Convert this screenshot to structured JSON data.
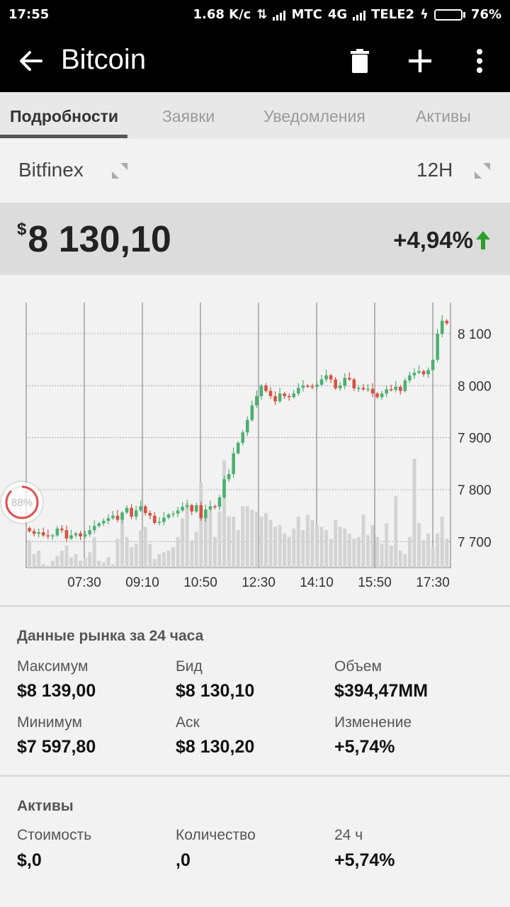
{
  "status_bar": {
    "time": "17:55",
    "net_speed": "1.68 K/c",
    "carrier1": "МТС",
    "net_type": "4G",
    "carrier2": "TELE2",
    "battery_pct": "76%",
    "battery_level": 0.76
  },
  "app_bar": {
    "title": "Bitcoin",
    "icons": [
      "back-arrow-icon",
      "trash-icon",
      "plus-icon",
      "more-vert-icon"
    ]
  },
  "tabs": [
    {
      "label": "Подробности",
      "active": true
    },
    {
      "label": "Заявки",
      "active": false
    },
    {
      "label": "Уведомления",
      "active": false
    },
    {
      "label": "Активы",
      "active": false
    }
  ],
  "exchange": {
    "name": "Bitfinex",
    "timeframe": "12H"
  },
  "price": {
    "currency_symbol": "$",
    "value": "8 130,10",
    "change": "+4,94%",
    "change_color": "#2e9e2e"
  },
  "chart_data": {
    "type": "candlestick",
    "x_ticks": [
      "07:30",
      "09:10",
      "10:50",
      "12:30",
      "14:10",
      "15:50",
      "17:30"
    ],
    "y_ticks": [
      {
        "value": 8100,
        "label": "8 100"
      },
      {
        "value": 8000,
        "label": "8 000"
      },
      {
        "value": 7900,
        "label": "7 900"
      },
      {
        "value": 7800,
        "label": "7 800"
      },
      {
        "value": 7700,
        "label": "7 700"
      }
    ],
    "ylim": [
      7650,
      8160
    ],
    "up_color": "#4caf72",
    "down_color": "#d9503f",
    "volume_color": "#d3d3d3",
    "closes": [
      7720,
      7715,
      7718,
      7712,
      7710,
      7712,
      7725,
      7722,
      7706,
      7712,
      7716,
      7710,
      7714,
      7722,
      7730,
      7735,
      7740,
      7745,
      7750,
      7742,
      7756,
      7765,
      7748,
      7760,
      7768,
      7755,
      7750,
      7736,
      7738,
      7746,
      7752,
      7754,
      7760,
      7767,
      7770,
      7758,
      7770,
      7745,
      7762,
      7768,
      7767,
      7785,
      7820,
      7830,
      7870,
      7890,
      7910,
      7934,
      7962,
      7980,
      8000,
      7990,
      7980,
      7970,
      7985,
      7980,
      7978,
      7985,
      7996,
      8000,
      7999,
      7998,
      8002,
      8012,
      8020,
      8012,
      7995,
      8000,
      8015,
      8012,
      7995,
      7996,
      7993,
      7994,
      7985,
      7978,
      7985,
      7993,
      7992,
      7998,
      7990,
      8010,
      8020,
      8025,
      8028,
      8022,
      8030,
      8050,
      8100,
      8125,
      8120
    ],
    "volumes": [
      0.16,
      0.08,
      0.1,
      0.02,
      0.01,
      0.04,
      0.07,
      0.1,
      0.13,
      0.06,
      0.08,
      0.04,
      0.06,
      0.09,
      0.18,
      0.04,
      0.03,
      0.06,
      0.02,
      0.17,
      0.28,
      0.18,
      0.12,
      0.14,
      0.22,
      0.24,
      0.14,
      0.05,
      0.08,
      0.09,
      0.1,
      0.12,
      0.18,
      0.29,
      0.38,
      0.16,
      0.21,
      0.5,
      0.33,
      0.34,
      0.18,
      0.33,
      0.63,
      0.3,
      0.3,
      0.22,
      0.36,
      0.36,
      0.34,
      0.33,
      0.3,
      0.32,
      0.28,
      0.24,
      0.25,
      0.2,
      0.18,
      0.23,
      0.3,
      0.22,
      0.31,
      0.28,
      0.25,
      0.24,
      0.22,
      0.17,
      0.28,
      0.24,
      0.23,
      0.2,
      0.17,
      0.18,
      0.31,
      0.19,
      0.25,
      0.18,
      0.14,
      0.26,
      0.13,
      0.42,
      0.1,
      0.08,
      0.18,
      0.64,
      0.26,
      0.16,
      0.2,
      0.12,
      0.2,
      0.3,
      0.17
    ]
  },
  "market": {
    "title": "Данные рынка за 24 часа",
    "items": [
      {
        "label": "Максимум",
        "value": "$8 139,00"
      },
      {
        "label": "Бид",
        "value": "$8 130,10"
      },
      {
        "label": "Объем",
        "value": "$394,47MM"
      },
      {
        "label": "Минимум",
        "value": "$7 597,80"
      },
      {
        "label": "Аск",
        "value": "$8 130,20"
      },
      {
        "label": "Изменение",
        "value": "+5,74%"
      }
    ]
  },
  "assets": {
    "title": "Активы",
    "items": [
      {
        "label": "Стоимость",
        "value": "$,0"
      },
      {
        "label": "Количество",
        "value": ",0"
      },
      {
        "label": "24 ч",
        "value": "+5,74%"
      }
    ]
  },
  "overlay_badge": {
    "text": "88%",
    "progress": 0.88
  }
}
